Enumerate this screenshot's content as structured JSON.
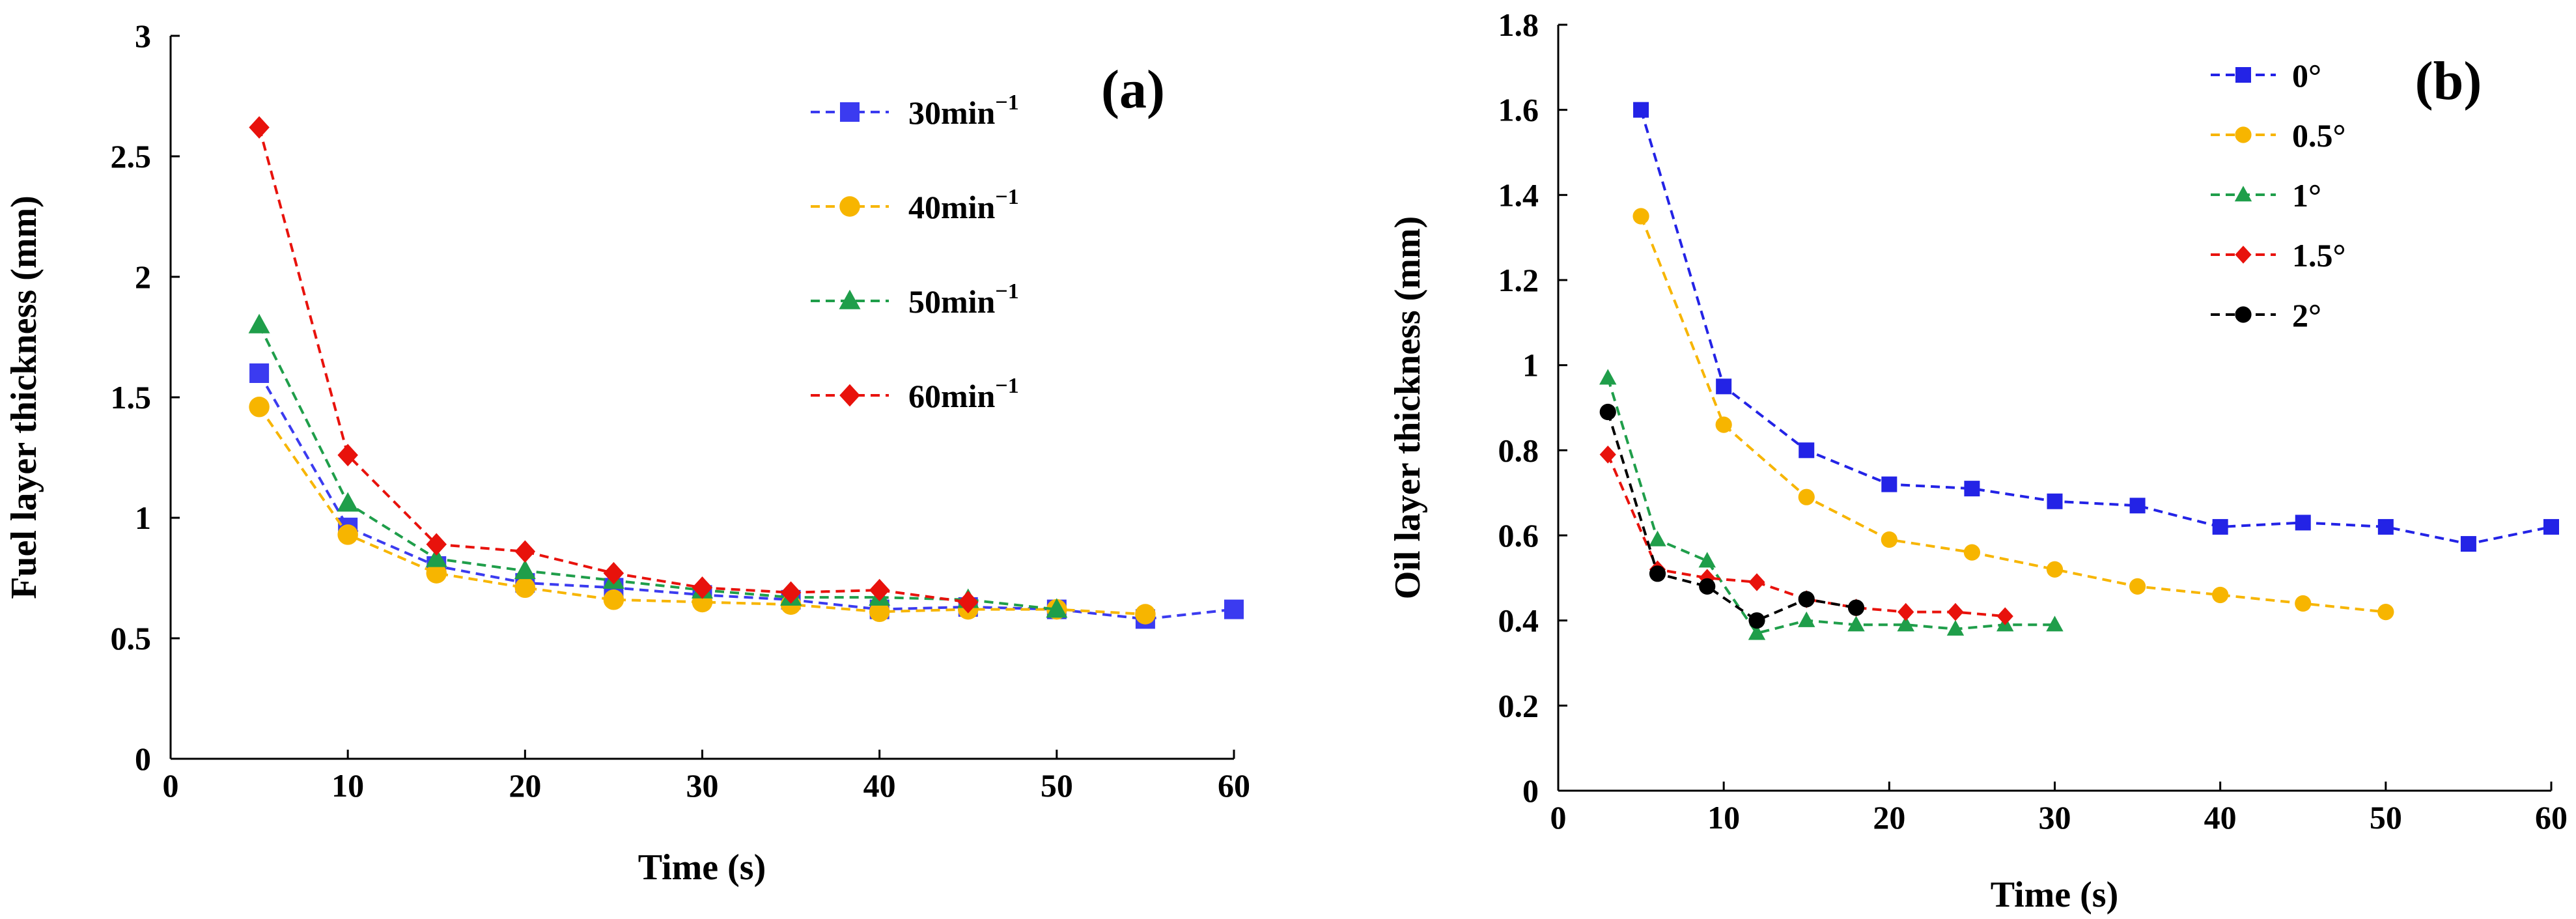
{
  "chart_data": [
    {
      "type": "line",
      "panel_label": "(a)",
      "xlabel": "Time (s)",
      "ylabel": "Fuel layer thickness (mm)",
      "xlim": [
        0,
        60
      ],
      "ylim": [
        0,
        3
      ],
      "xticks": [
        0,
        10,
        20,
        30,
        40,
        50,
        60
      ],
      "xtick_labels": [
        "0",
        "10",
        "20",
        "30",
        "40",
        "50",
        "60"
      ],
      "yticks": [
        0,
        0.5,
        1,
        1.5,
        2,
        2.5,
        3
      ],
      "ytick_labels": [
        "0",
        "0.5",
        "1",
        "1.5",
        "2",
        "2.5",
        "3"
      ],
      "grid": false,
      "legend_position": "top-right",
      "series": [
        {
          "name": "30min",
          "superscript": "−1",
          "color": "#3b3bf0",
          "marker": "square",
          "x": [
            5,
            10,
            15,
            20,
            25,
            30,
            35,
            40,
            45,
            50,
            55,
            60
          ],
          "y": [
            1.6,
            0.96,
            0.8,
            0.73,
            0.71,
            0.68,
            0.66,
            0.62,
            0.63,
            0.62,
            0.58,
            0.62
          ]
        },
        {
          "name": "40min",
          "superscript": "−1",
          "color": "#f7b500",
          "marker": "circle",
          "x": [
            5,
            10,
            15,
            20,
            25,
            30,
            35,
            40,
            45,
            50,
            55
          ],
          "y": [
            1.46,
            0.93,
            0.77,
            0.71,
            0.66,
            0.65,
            0.64,
            0.61,
            0.62,
            0.62,
            0.6
          ]
        },
        {
          "name": "50min",
          "superscript": "−1",
          "color": "#1f9e4a",
          "marker": "triangle",
          "x": [
            5,
            10,
            15,
            20,
            25,
            30,
            35,
            40,
            45,
            50
          ],
          "y": [
            1.8,
            1.06,
            0.83,
            0.78,
            0.74,
            0.7,
            0.67,
            0.67,
            0.66,
            0.62
          ]
        },
        {
          "name": "60min",
          "superscript": "−1",
          "color": "#e8120c",
          "marker": "diamond",
          "x": [
            5,
            10,
            15,
            20,
            25,
            30,
            35,
            40,
            45
          ],
          "y": [
            2.62,
            1.26,
            0.89,
            0.86,
            0.77,
            0.71,
            0.69,
            0.7,
            0.65
          ]
        }
      ]
    },
    {
      "type": "line",
      "panel_label": "(b)",
      "xlabel": "Time (s)",
      "ylabel": "Oil layer thickness (mm)",
      "xlim": [
        0,
        60
      ],
      "ylim": [
        0,
        1.8
      ],
      "xticks": [
        0,
        10,
        20,
        30,
        40,
        50,
        60
      ],
      "xtick_labels": [
        "0",
        "10",
        "20",
        "30",
        "40",
        "50",
        "60"
      ],
      "yticks": [
        0,
        0.2,
        0.4,
        0.6,
        0.8,
        1,
        1.2,
        1.4,
        1.6,
        1.8
      ],
      "ytick_labels": [
        "0",
        "0.2",
        "0.4",
        "0.6",
        "0.8",
        "1",
        "1.2",
        "1.4",
        "1.6",
        "1.8"
      ],
      "grid": false,
      "legend_position": "top-center",
      "series": [
        {
          "name": "0°",
          "color": "#2323e6",
          "marker": "square",
          "x": [
            5,
            10,
            15,
            20,
            25,
            30,
            35,
            40,
            45,
            50,
            55,
            60
          ],
          "y": [
            1.6,
            0.95,
            0.8,
            0.72,
            0.71,
            0.68,
            0.67,
            0.62,
            0.63,
            0.62,
            0.58,
            0.62
          ]
        },
        {
          "name": "0.5°",
          "color": "#f7b500",
          "marker": "circle",
          "x": [
            5,
            10,
            15,
            20,
            25,
            30,
            35,
            40,
            45,
            50
          ],
          "y": [
            1.35,
            0.86,
            0.69,
            0.59,
            0.56,
            0.52,
            0.48,
            0.46,
            0.44,
            0.42
          ]
        },
        {
          "name": "1°",
          "color": "#1f9e4a",
          "marker": "triangle",
          "x": [
            3,
            6,
            9,
            12,
            15,
            18,
            21,
            24,
            27,
            30
          ],
          "y": [
            0.97,
            0.59,
            0.54,
            0.37,
            0.4,
            0.39,
            0.39,
            0.38,
            0.39,
            0.39
          ]
        },
        {
          "name": "1.5°",
          "color": "#e8120c",
          "marker": "diamond",
          "x": [
            3,
            6,
            9,
            12,
            15,
            18,
            21,
            24,
            27
          ],
          "y": [
            0.79,
            0.52,
            0.5,
            0.49,
            0.45,
            0.43,
            0.42,
            0.42,
            0.41
          ]
        },
        {
          "name": "2°",
          "color": "#000000",
          "marker": "circle",
          "x": [
            3,
            6,
            9,
            12,
            15,
            18
          ],
          "y": [
            0.89,
            0.51,
            0.48,
            0.4,
            0.45,
            0.43
          ]
        }
      ]
    }
  ]
}
